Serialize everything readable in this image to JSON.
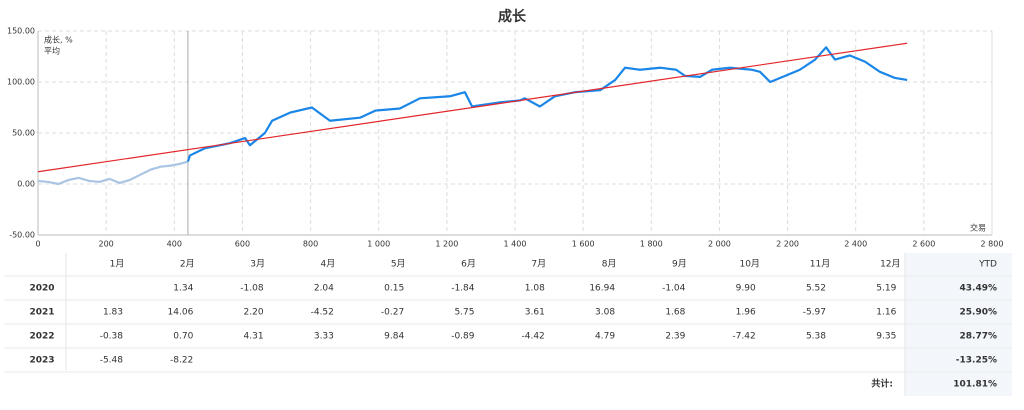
{
  "chart_data": {
    "type": "line",
    "title": "成长",
    "x_label": "交易",
    "xlim": [
      0,
      2800
    ],
    "xticks": [
      0,
      200,
      400,
      600,
      800,
      {
        "value": 1000,
        "label": "1 000"
      },
      {
        "value": 1200,
        "label": "1 200"
      },
      {
        "value": 1400,
        "label": "1 400"
      },
      {
        "value": 1600,
        "label": "1 600"
      },
      {
        "value": 1800,
        "label": "1 800"
      },
      {
        "value": 2000,
        "label": "2 000"
      },
      {
        "value": 2200,
        "label": "2 200"
      },
      {
        "value": 2400,
        "label": "2 400"
      },
      {
        "value": 2600,
        "label": "2 600"
      },
      {
        "value": 2800,
        "label": "2 800"
      }
    ],
    "ylim": [
      -50,
      150
    ],
    "yticks": [
      {
        "value": -50,
        "label": "-50.00"
      },
      {
        "value": 0,
        "label": "0.00"
      },
      {
        "value": 50,
        "label": "50.00"
      },
      {
        "value": 100,
        "label": "100.00"
      },
      {
        "value": 150,
        "label": "150.00"
      }
    ],
    "grid": true,
    "legend": "upper left",
    "marker_x": 440,
    "marker_color_before": "#a9c5e3",
    "series": [
      {
        "name": "成长, %",
        "color": "#1a86e8",
        "x": [
          0,
          30,
          60,
          90,
          120,
          150,
          180,
          210,
          240,
          270,
          300,
          330,
          360,
          390,
          420,
          440,
          446,
          490,
          563,
          608,
          622,
          666,
          687,
          740,
          804,
          857,
          945,
          991,
          1062,
          1121,
          1209,
          1253,
          1274,
          1356,
          1415,
          1429,
          1473,
          1517,
          1576,
          1650,
          1694,
          1723,
          1767,
          1826,
          1873,
          1899,
          1943,
          1978,
          2031,
          2096,
          2119,
          2149,
          2193,
          2236,
          2281,
          2313,
          2339,
          2383,
          2427,
          2471,
          2515,
          2551
        ],
        "values": [
          3,
          2,
          0,
          4,
          6,
          3,
          2,
          5,
          1,
          4,
          9,
          14,
          17,
          18,
          20,
          22,
          28,
          35,
          40,
          45,
          38,
          50,
          62,
          70,
          75,
          62,
          65,
          72,
          74,
          84,
          86,
          90,
          76,
          80,
          82,
          84,
          76,
          86,
          90,
          92,
          102,
          114,
          112,
          114,
          112,
          106,
          105,
          112,
          114,
          112,
          110,
          100,
          106,
          112,
          122,
          134,
          122,
          126,
          120,
          110,
          104,
          102
        ]
      },
      {
        "name": "平均",
        "color": "#e3262b",
        "x": [
          0,
          2551
        ],
        "values": [
          12,
          138
        ]
      }
    ]
  },
  "table": {
    "header": [
      "1月",
      "2月",
      "3月",
      "4月",
      "5月",
      "6月",
      "7月",
      "8月",
      "9月",
      "10月",
      "11月",
      "12月",
      "YTD"
    ],
    "rows": [
      {
        "year": "2020",
        "cells": [
          null,
          "1.34",
          "-1.08",
          "2.04",
          "0.15",
          "-1.84",
          "1.08",
          "16.94",
          "-1.04",
          "9.90",
          "5.52",
          "5.19",
          "43.49%"
        ]
      },
      {
        "year": "2021",
        "cells": [
          "1.83",
          "14.06",
          "2.20",
          "-4.52",
          "-0.27",
          "5.75",
          "3.61",
          "3.08",
          "1.68",
          "1.96",
          "-5.97",
          "1.16",
          "25.90%"
        ]
      },
      {
        "year": "2022",
        "cells": [
          "-0.38",
          "0.70",
          "4.31",
          "3.33",
          "9.84",
          "-0.89",
          "-4.42",
          "4.79",
          "2.39",
          "-7.42",
          "5.38",
          "9.35",
          "28.77%"
        ]
      },
      {
        "year": "2023",
        "cells": [
          "-5.48",
          "-8.22",
          null,
          null,
          null,
          null,
          null,
          null,
          null,
          null,
          null,
          null,
          "-13.25%"
        ]
      }
    ],
    "total_label": "共计:",
    "total": "101.81%",
    "positive_color": "#2a6496",
    "negative_color": "#b0202a"
  }
}
